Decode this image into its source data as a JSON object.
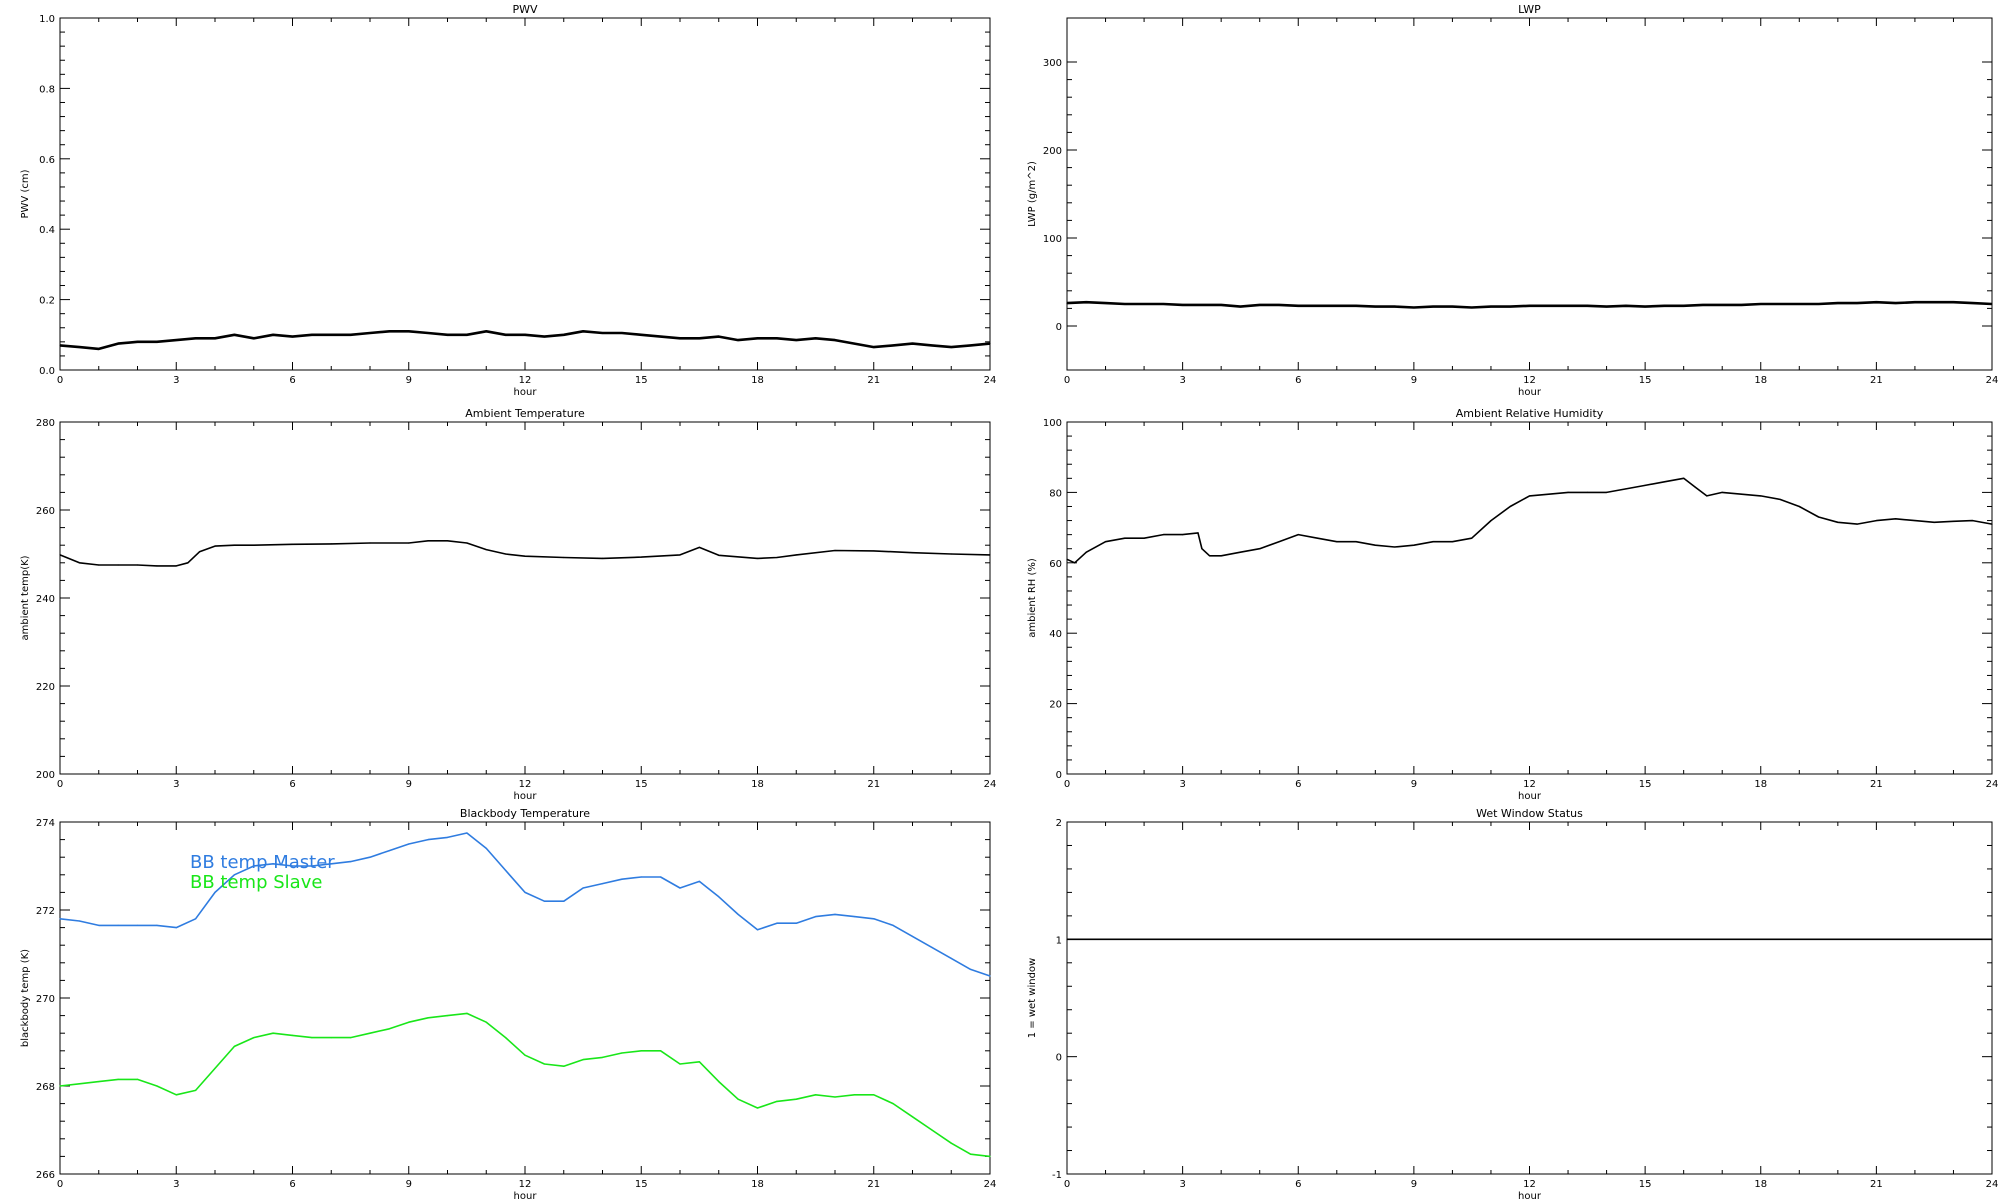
{
  "panels": [
    {
      "id": "pwv",
      "title": "PWV",
      "xlabel": "hour",
      "ylabel": "PWV (cm)",
      "xlim": [
        0,
        24
      ],
      "ylim": [
        0.0,
        1.0
      ],
      "xticks": [
        "0",
        "3",
        "6",
        "9",
        "12",
        "15",
        "18",
        "21",
        "24"
      ],
      "yticks": [
        "0.0",
        "0.2",
        "0.4",
        "0.6",
        "0.8",
        "1.0"
      ],
      "ytick_values": [
        0.0,
        0.2,
        0.4,
        0.6,
        0.8,
        1.0
      ]
    },
    {
      "id": "lwp",
      "title": "LWP",
      "xlabel": "hour",
      "ylabel": "LWP (g/m^2)",
      "xlim": [
        0,
        24
      ],
      "ylim": [
        -50,
        350
      ],
      "xticks": [
        "0",
        "3",
        "6",
        "9",
        "12",
        "15",
        "18",
        "21",
        "24"
      ],
      "yticks": [
        "0",
        "100",
        "200",
        "300"
      ],
      "ytick_values": [
        0,
        100,
        200,
        300
      ]
    },
    {
      "id": "ambient-temp",
      "title": "Ambient Temperature",
      "xlabel": "hour",
      "ylabel": "ambient temp(K)",
      "xlim": [
        0,
        24
      ],
      "ylim": [
        200,
        280
      ],
      "xticks": [
        "0",
        "3",
        "6",
        "9",
        "12",
        "15",
        "18",
        "21",
        "24"
      ],
      "yticks": [
        "200",
        "220",
        "240",
        "260",
        "280"
      ],
      "ytick_values": [
        200,
        220,
        240,
        260,
        280
      ]
    },
    {
      "id": "ambient-rh",
      "title": "Ambient Relative Humidity",
      "xlabel": "hour",
      "ylabel": "ambient RH (%)",
      "xlim": [
        0,
        24
      ],
      "ylim": [
        0,
        100
      ],
      "xticks": [
        "0",
        "3",
        "6",
        "9",
        "12",
        "15",
        "18",
        "21",
        "24"
      ],
      "yticks": [
        "0",
        "20",
        "40",
        "60",
        "80",
        "100"
      ],
      "ytick_values": [
        0,
        20,
        40,
        60,
        80,
        100
      ]
    },
    {
      "id": "blackbody-temp",
      "title": "Blackbody Temperature",
      "xlabel": "hour",
      "ylabel": "blackbody temp (K)",
      "xlim": [
        0,
        24
      ],
      "ylim": [
        266,
        274
      ],
      "xticks": [
        "0",
        "3",
        "6",
        "9",
        "12",
        "15",
        "18",
        "21",
        "24"
      ],
      "yticks": [
        "266",
        "268",
        "270",
        "272",
        "274"
      ],
      "ytick_values": [
        266,
        268,
        270,
        272,
        274
      ],
      "legend": [
        {
          "label": "BB temp Master",
          "color": "#2f7ce0"
        },
        {
          "label": "BB temp Slave",
          "color": "#19e619"
        }
      ]
    },
    {
      "id": "wet-window",
      "title": "Wet Window Status",
      "xlabel": "hour",
      "ylabel": "1 = wet window",
      "xlim": [
        0,
        24
      ],
      "ylim": [
        -1,
        2
      ],
      "xticks": [
        "0",
        "3",
        "6",
        "9",
        "12",
        "15",
        "18",
        "21",
        "24"
      ],
      "yticks": [
        "-1",
        "0",
        "1",
        "2"
      ],
      "ytick_values": [
        -1,
        0,
        1,
        2
      ]
    }
  ],
  "chart_data": [
    {
      "type": "line",
      "title": "PWV",
      "xlabel": "hour",
      "ylabel": "PWV (cm)",
      "xlim": [
        0,
        24
      ],
      "ylim": [
        0.0,
        1.0
      ],
      "series": [
        {
          "color": "#000000",
          "x": [
            0,
            0.5,
            1,
            1.5,
            2,
            2.5,
            3,
            3.5,
            4,
            4.5,
            5,
            5.5,
            6,
            6.5,
            7,
            7.5,
            8,
            8.5,
            9,
            9.5,
            10,
            10.5,
            11,
            11.5,
            12,
            12.5,
            13,
            13.5,
            14,
            14.5,
            15,
            15.5,
            16,
            16.5,
            17,
            17.5,
            18,
            18.5,
            19,
            19.5,
            20,
            20.5,
            21,
            21.5,
            22,
            22.5,
            23,
            23.5,
            24
          ],
          "y": [
            0.07,
            0.065,
            0.06,
            0.075,
            0.08,
            0.08,
            0.085,
            0.09,
            0.09,
            0.1,
            0.09,
            0.1,
            0.095,
            0.1,
            0.1,
            0.1,
            0.105,
            0.11,
            0.11,
            0.105,
            0.1,
            0.1,
            0.11,
            0.1,
            0.1,
            0.095,
            0.1,
            0.11,
            0.105,
            0.105,
            0.1,
            0.095,
            0.09,
            0.09,
            0.095,
            0.085,
            0.09,
            0.09,
            0.085,
            0.09,
            0.085,
            0.075,
            0.065,
            0.07,
            0.075,
            0.07,
            0.065,
            0.07,
            0.075
          ]
        }
      ]
    },
    {
      "type": "line",
      "title": "LWP",
      "xlabel": "hour",
      "ylabel": "LWP (g/m^2)",
      "xlim": [
        0,
        24
      ],
      "ylim": [
        -50,
        350
      ],
      "series": [
        {
          "color": "#000000",
          "x": [
            0,
            0.5,
            1,
            1.5,
            2,
            2.5,
            3,
            3.5,
            4,
            4.5,
            5,
            5.5,
            6,
            6.5,
            7,
            7.5,
            8,
            8.5,
            9,
            9.5,
            10,
            10.5,
            11,
            11.5,
            12,
            12.5,
            13,
            13.5,
            14,
            14.5,
            15,
            15.5,
            16,
            16.5,
            17,
            17.5,
            18,
            18.5,
            19,
            19.5,
            20,
            20.5,
            21,
            21.5,
            22,
            22.5,
            23,
            23.5,
            24
          ],
          "y": [
            26,
            27,
            26,
            25,
            25,
            25,
            24,
            24,
            24,
            22,
            24,
            24,
            23,
            23,
            23,
            23,
            22,
            22,
            21,
            22,
            22,
            21,
            22,
            22,
            23,
            23,
            23,
            23,
            22,
            23,
            22,
            23,
            23,
            24,
            24,
            24,
            25,
            25,
            25,
            25,
            26,
            26,
            27,
            26,
            27,
            27,
            27,
            26,
            25
          ]
        }
      ]
    },
    {
      "type": "line",
      "title": "Ambient Temperature",
      "xlabel": "hour",
      "ylabel": "ambient temp(K)",
      "xlim": [
        0,
        24
      ],
      "ylim": [
        200,
        280
      ],
      "series": [
        {
          "color": "#000000",
          "x": [
            0,
            0.5,
            1,
            1.5,
            2,
            2.5,
            3,
            3.3,
            3.6,
            4,
            4.5,
            5,
            6,
            7,
            8,
            9,
            9.5,
            10,
            10.5,
            11,
            11.5,
            12,
            13,
            14,
            15,
            16,
            16.5,
            17,
            18,
            18.5,
            19,
            20,
            21,
            22,
            23,
            24
          ],
          "y": [
            249.8,
            248,
            247.5,
            247.5,
            247.5,
            247.3,
            247.3,
            248,
            250.5,
            251.8,
            252,
            252,
            252.2,
            252.3,
            252.5,
            252.5,
            253,
            253,
            252.5,
            251,
            250,
            249.5,
            249.2,
            249,
            249.3,
            249.8,
            251.5,
            249.7,
            249,
            249.2,
            249.8,
            250.8,
            250.7,
            250.3,
            250,
            249.8
          ]
        }
      ]
    },
    {
      "type": "line",
      "title": "Ambient Relative Humidity",
      "xlabel": "hour",
      "ylabel": "ambient RH (%)",
      "xlim": [
        0,
        24
      ],
      "ylim": [
        0,
        100
      ],
      "series": [
        {
          "color": "#000000",
          "x": [
            0,
            0.2,
            0.5,
            1,
            1.5,
            2,
            2.5,
            3,
            3.4,
            3.5,
            3.7,
            4,
            4.5,
            5,
            5.5,
            6,
            6.5,
            7,
            7.5,
            8,
            8.5,
            9,
            9.5,
            10,
            10.5,
            11,
            11.5,
            12,
            12.5,
            13,
            13.5,
            14,
            14.5,
            15,
            15.5,
            16,
            16.3,
            16.6,
            17,
            17.5,
            18,
            18.5,
            19,
            19.5,
            20,
            20.5,
            21,
            21.5,
            22,
            22.5,
            23,
            23.5,
            24
          ],
          "y": [
            61,
            60,
            63,
            66,
            67,
            67,
            68,
            68,
            68.5,
            64,
            62,
            62,
            63,
            64,
            66,
            68,
            67,
            66,
            66,
            65,
            64.5,
            65,
            66,
            66,
            67,
            72,
            76,
            79,
            79.5,
            80,
            80,
            80,
            81,
            82,
            83,
            84,
            81.5,
            79,
            80,
            79.5,
            79,
            78,
            76,
            73,
            71.5,
            71,
            72,
            72.5,
            72,
            71.5,
            71.8,
            72,
            71
          ]
        }
      ]
    },
    {
      "type": "line",
      "title": "Blackbody Temperature",
      "xlabel": "hour",
      "ylabel": "blackbody temp (K)",
      "xlim": [
        0,
        24
      ],
      "ylim": [
        266,
        274
      ],
      "series": [
        {
          "name": "BB temp Master",
          "color": "#2f7ce0",
          "x": [
            0,
            0.5,
            1,
            1.5,
            2,
            2.5,
            3,
            3.5,
            4,
            4.5,
            5,
            5.5,
            6,
            6.5,
            7,
            7.5,
            8,
            8.5,
            9,
            9.5,
            10,
            10.5,
            11,
            11.5,
            12,
            12.5,
            13,
            13.5,
            14,
            14.5,
            15,
            15.5,
            16,
            16.5,
            17,
            17.5,
            18,
            18.5,
            19,
            19.5,
            20,
            20.5,
            21,
            21.5,
            22,
            22.5,
            23,
            23.5,
            24
          ],
          "y": [
            271.8,
            271.75,
            271.65,
            271.65,
            271.65,
            271.65,
            271.6,
            271.8,
            272.4,
            272.8,
            273,
            273.05,
            273.0,
            273.0,
            273.05,
            273.1,
            273.2,
            273.35,
            273.5,
            273.6,
            273.65,
            273.75,
            273.4,
            272.9,
            272.4,
            272.2,
            272.2,
            272.5,
            272.6,
            272.7,
            272.75,
            272.75,
            272.5,
            272.65,
            272.3,
            271.9,
            271.55,
            271.7,
            271.7,
            271.85,
            271.9,
            271.85,
            271.8,
            271.65,
            271.4,
            271.15,
            270.9,
            270.65,
            270.5
          ]
        },
        {
          "name": "BB temp Slave",
          "color": "#19e619",
          "x": [
            0,
            0.5,
            1,
            1.5,
            2,
            2.5,
            3,
            3.5,
            4,
            4.5,
            5,
            5.5,
            6,
            6.5,
            7,
            7.5,
            8,
            8.5,
            9,
            9.5,
            10,
            10.5,
            11,
            11.5,
            12,
            12.5,
            13,
            13.5,
            14,
            14.5,
            15,
            15.5,
            16,
            16.5,
            17,
            17.5,
            18,
            18.5,
            19,
            19.5,
            20,
            20.5,
            21,
            21.5,
            22,
            22.5,
            23,
            23.5,
            24
          ],
          "y": [
            268.0,
            268.05,
            268.1,
            268.15,
            268.15,
            268.0,
            267.8,
            267.9,
            268.4,
            268.9,
            269.1,
            269.2,
            269.15,
            269.1,
            269.1,
            269.1,
            269.2,
            269.3,
            269.45,
            269.55,
            269.6,
            269.65,
            269.45,
            269.1,
            268.7,
            268.5,
            268.45,
            268.6,
            268.65,
            268.75,
            268.8,
            268.8,
            268.5,
            268.55,
            268.1,
            267.7,
            267.5,
            267.65,
            267.7,
            267.8,
            267.75,
            267.8,
            267.8,
            267.6,
            267.3,
            267.0,
            266.7,
            266.45,
            266.4
          ]
        }
      ]
    },
    {
      "type": "line",
      "title": "Wet Window Status",
      "xlabel": "hour",
      "ylabel": "1 = wet window",
      "xlim": [
        0,
        24
      ],
      "ylim": [
        -1,
        2
      ],
      "series": [
        {
          "color": "#000000",
          "x": [
            0,
            24
          ],
          "y": [
            1,
            1
          ]
        }
      ]
    }
  ]
}
